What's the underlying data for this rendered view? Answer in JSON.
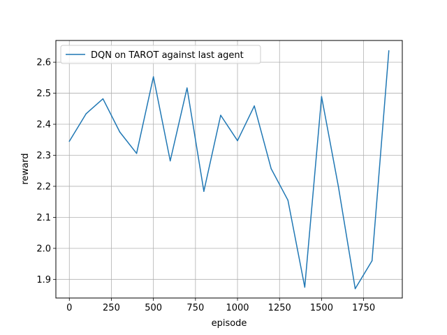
{
  "chart_data": {
    "type": "line",
    "title": "",
    "xlabel": "episode",
    "ylabel": "reward",
    "xlim": [
      -80,
      1980
    ],
    "ylim": [
      1.84,
      2.67
    ],
    "grid": true,
    "legend_position": "top-left",
    "x_ticks": [
      0,
      250,
      500,
      750,
      1000,
      1250,
      1500,
      1750
    ],
    "x_tick_labels": [
      "0",
      "250",
      "500",
      "750",
      "1000",
      "1250",
      "1500",
      "1750"
    ],
    "y_ticks": [
      1.9,
      2.0,
      2.1,
      2.2,
      2.3,
      2.4,
      2.5,
      2.6
    ],
    "y_tick_labels": [
      "1.9",
      "2.0",
      "2.1",
      "2.2",
      "2.3",
      "2.4",
      "2.5",
      "2.6"
    ],
    "series": [
      {
        "name": "DQN on TAROT against last agent",
        "color": "#1f77b4",
        "x": [
          0,
          100,
          200,
          300,
          400,
          500,
          600,
          700,
          800,
          900,
          1000,
          1100,
          1200,
          1300,
          1400,
          1500,
          1600,
          1700,
          1800,
          1900
        ],
        "values": [
          2.345,
          2.434,
          2.482,
          2.375,
          2.306,
          2.553,
          2.282,
          2.517,
          2.184,
          2.429,
          2.347,
          2.459,
          2.257,
          2.155,
          1.875,
          2.489,
          2.199,
          1.87,
          1.96,
          2.637
        ]
      }
    ]
  }
}
